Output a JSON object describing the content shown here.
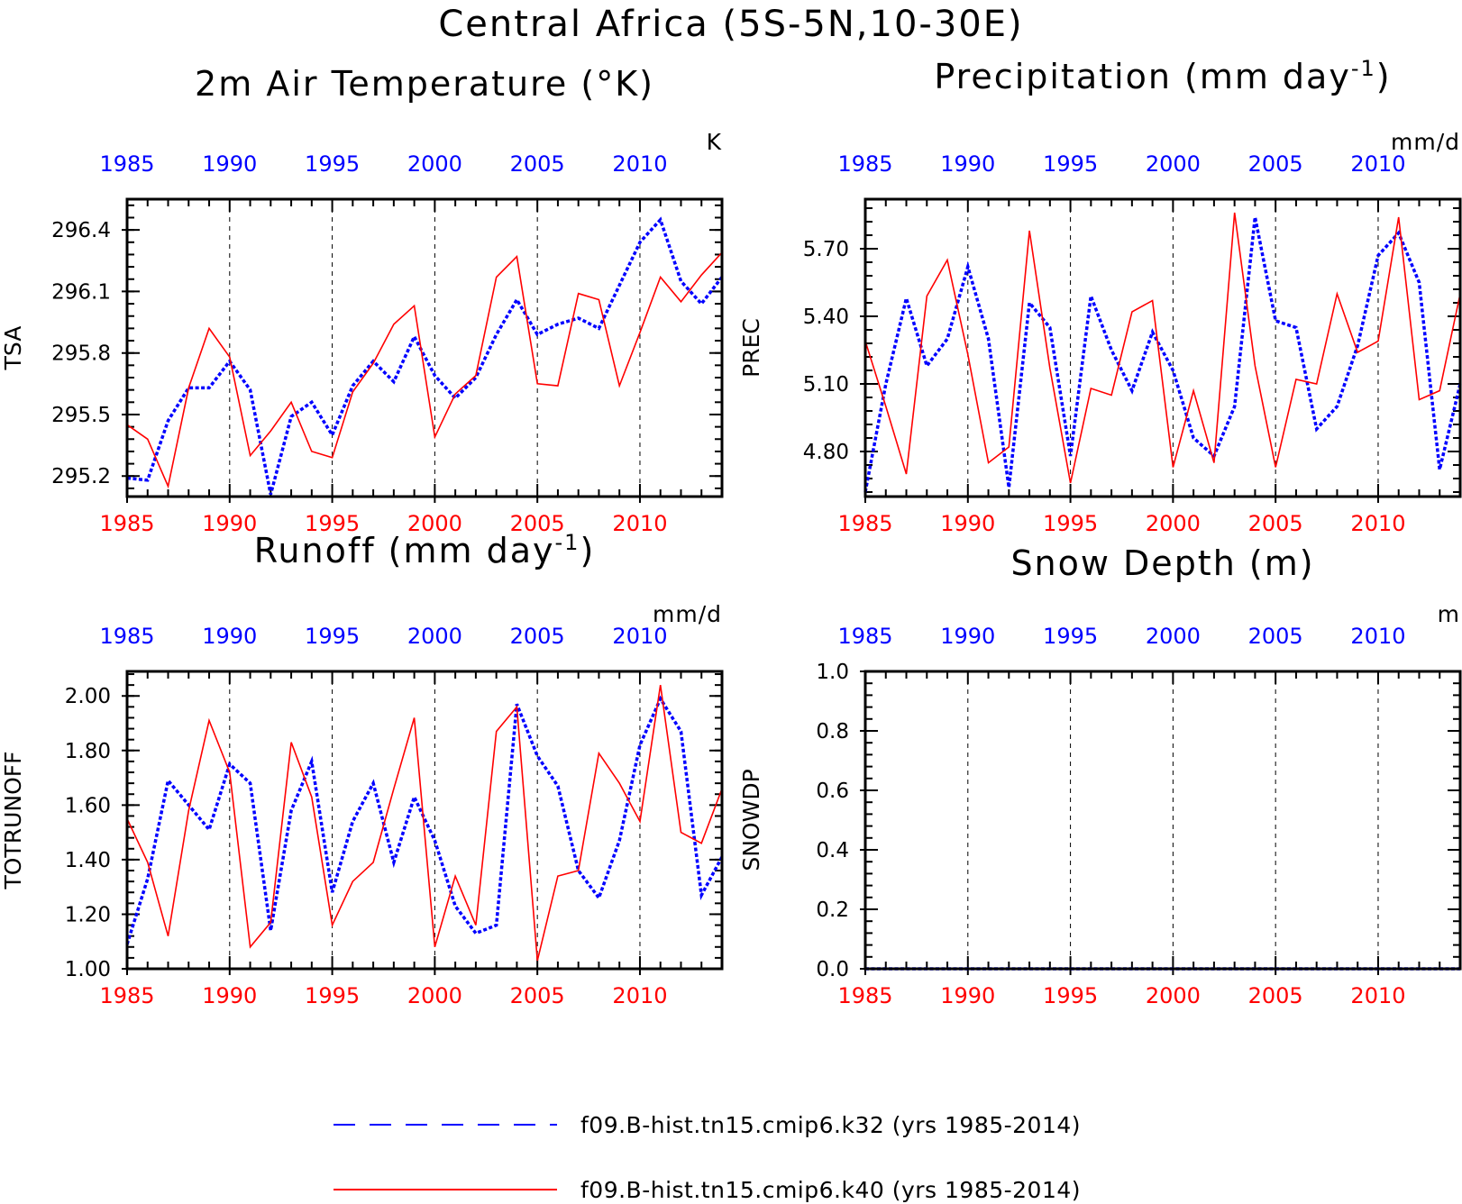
{
  "title": "Central Africa (5S-5N,10-30E)",
  "colors": {
    "blue": "#0000ff",
    "red": "#ff0000",
    "black": "#000000"
  },
  "legend": [
    {
      "label": "f09.B-hist.tn15.cmip6.k32 (yrs 1985-2014)",
      "color": "#0000ff",
      "style": "dashed"
    },
    {
      "label": "f09.B-hist.tn15.cmip6.k40 (yrs 1985-2014)",
      "color": "#ff0000",
      "style": "solid"
    }
  ],
  "chart_data": [
    {
      "type": "line",
      "title": "2m Air Temperature (°K)",
      "ylabel": "TSA",
      "units": "K",
      "xlim": [
        1985,
        2014
      ],
      "ylim": [
        295.1,
        296.55
      ],
      "xticks": [
        1985,
        1990,
        1995,
        2000,
        2005,
        2010
      ],
      "yticks": [
        295.2,
        295.5,
        295.8,
        296.1,
        296.4
      ],
      "ytick_labels": [
        "295.2",
        "295.5",
        "295.8",
        "296.1",
        "296.4"
      ],
      "grid": "dashed vertical at major x ticks",
      "x": [
        1985,
        1986,
        1987,
        1988,
        1989,
        1990,
        1991,
        1992,
        1993,
        1994,
        1995,
        1996,
        1997,
        1998,
        1999,
        2000,
        2001,
        2002,
        2003,
        2004,
        2005,
        2006,
        2007,
        2008,
        2009,
        2010,
        2011,
        2012,
        2013,
        2014
      ],
      "series": [
        {
          "color": "#0000ff",
          "style": "dotted",
          "values": [
            295.19,
            295.18,
            295.47,
            295.63,
            295.63,
            295.76,
            295.62,
            295.11,
            295.49,
            295.56,
            295.4,
            295.64,
            295.76,
            295.66,
            295.88,
            295.69,
            295.58,
            295.68,
            295.89,
            296.06,
            295.89,
            295.94,
            295.97,
            295.92,
            296.13,
            296.34,
            296.45,
            296.15,
            296.04,
            296.17
          ]
        },
        {
          "color": "#ff0000",
          "style": "solid",
          "values": [
            295.45,
            295.38,
            295.15,
            295.63,
            295.92,
            295.78,
            295.3,
            295.42,
            295.56,
            295.32,
            295.29,
            295.61,
            295.75,
            295.94,
            296.03,
            295.39,
            295.6,
            295.69,
            296.17,
            296.27,
            295.65,
            295.64,
            296.09,
            296.06,
            295.64,
            295.9,
            296.17,
            296.05,
            296.18,
            296.29
          ]
        }
      ]
    },
    {
      "type": "line",
      "title": "Precipitation (mm day",
      "title_sup": "-1",
      "title_close": ")",
      "ylabel": "PREC",
      "units": "mm/d",
      "xlim": [
        1985,
        2014
      ],
      "ylim": [
        4.6,
        5.92
      ],
      "xticks": [
        1985,
        1990,
        1995,
        2000,
        2005,
        2010
      ],
      "yticks": [
        4.8,
        5.1,
        5.4,
        5.7
      ],
      "ytick_labels": [
        "4.80",
        "5.10",
        "5.40",
        "5.70"
      ],
      "grid": "dashed vertical at major x ticks",
      "x": [
        1985,
        1986,
        1987,
        1988,
        1989,
        1990,
        1991,
        1992,
        1993,
        1994,
        1995,
        1996,
        1997,
        1998,
        1999,
        2000,
        2001,
        2002,
        2003,
        2004,
        2005,
        2006,
        2007,
        2008,
        2009,
        2010,
        2011,
        2012,
        2013,
        2014
      ],
      "series": [
        {
          "color": "#0000ff",
          "style": "dotted",
          "values": [
            4.62,
            5.1,
            5.48,
            5.18,
            5.3,
            5.62,
            5.3,
            4.64,
            5.46,
            5.35,
            4.78,
            5.49,
            5.25,
            5.07,
            5.33,
            5.16,
            4.86,
            4.78,
            5.0,
            5.84,
            5.38,
            5.35,
            4.9,
            5.0,
            5.27,
            5.67,
            5.77,
            5.55,
            4.72,
            5.1
          ]
        },
        {
          "color": "#ff0000",
          "style": "solid",
          "values": [
            5.29,
            5.0,
            4.7,
            5.49,
            5.65,
            5.23,
            4.75,
            4.82,
            5.78,
            5.17,
            4.66,
            5.08,
            5.05,
            5.42,
            5.47,
            4.73,
            5.07,
            4.75,
            5.86,
            5.18,
            4.73,
            5.12,
            5.1,
            5.5,
            5.24,
            5.29,
            5.84,
            5.03,
            5.07,
            5.5
          ]
        }
      ]
    },
    {
      "type": "line",
      "title": "Runoff (mm day",
      "title_sup": "-1",
      "title_close": ")",
      "ylabel": "TOTRUNOFF",
      "units": "mm/d",
      "xlim": [
        1985,
        2014
      ],
      "ylim": [
        1.0,
        2.09
      ],
      "xticks": [
        1985,
        1990,
        1995,
        2000,
        2005,
        2010
      ],
      "yticks": [
        1.0,
        1.2,
        1.4,
        1.6,
        1.8,
        2.0
      ],
      "ytick_labels": [
        "1.00",
        "1.20",
        "1.40",
        "1.60",
        "1.80",
        "2.00"
      ],
      "grid": "dashed vertical at major x ticks",
      "x": [
        1985,
        1986,
        1987,
        1988,
        1989,
        1990,
        1991,
        1992,
        1993,
        1994,
        1995,
        1996,
        1997,
        1998,
        1999,
        2000,
        2001,
        2002,
        2003,
        2004,
        2005,
        2006,
        2007,
        2008,
        2009,
        2010,
        2011,
        2012,
        2013,
        2014
      ],
      "series": [
        {
          "color": "#0000ff",
          "style": "dotted",
          "values": [
            1.09,
            1.33,
            1.69,
            1.6,
            1.51,
            1.75,
            1.68,
            1.14,
            1.58,
            1.76,
            1.28,
            1.54,
            1.68,
            1.39,
            1.63,
            1.47,
            1.23,
            1.13,
            1.16,
            1.97,
            1.78,
            1.67,
            1.36,
            1.26,
            1.47,
            1.82,
            1.99,
            1.87,
            1.27,
            1.41
          ]
        },
        {
          "color": "#ff0000",
          "style": "solid",
          "values": [
            1.55,
            1.39,
            1.12,
            1.58,
            1.91,
            1.72,
            1.08,
            1.17,
            1.83,
            1.63,
            1.16,
            1.32,
            1.39,
            1.66,
            1.92,
            1.08,
            1.34,
            1.16,
            1.87,
            1.96,
            1.03,
            1.34,
            1.36,
            1.79,
            1.68,
            1.54,
            2.04,
            1.5,
            1.46,
            1.66
          ]
        }
      ]
    },
    {
      "type": "line",
      "title": "Snow Depth (m)",
      "ylabel": "SNOWDP",
      "units": "m",
      "xlim": [
        1985,
        2014
      ],
      "ylim": [
        0.0,
        1.0
      ],
      "xticks": [
        1985,
        1990,
        1995,
        2000,
        2005,
        2010
      ],
      "yticks": [
        0.0,
        0.2,
        0.4,
        0.6,
        0.8,
        1.0
      ],
      "ytick_labels": [
        "0.0",
        "0.2",
        "0.4",
        "0.6",
        "0.8",
        "1.0"
      ],
      "grid": "dashed vertical at major x ticks",
      "x": [
        1985,
        1986,
        1987,
        1988,
        1989,
        1990,
        1991,
        1992,
        1993,
        1994,
        1995,
        1996,
        1997,
        1998,
        1999,
        2000,
        2001,
        2002,
        2003,
        2004,
        2005,
        2006,
        2007,
        2008,
        2009,
        2010,
        2011,
        2012,
        2013,
        2014
      ],
      "series": [
        {
          "color": "#0000ff",
          "style": "dotted",
          "values": [
            0,
            0,
            0,
            0,
            0,
            0,
            0,
            0,
            0,
            0,
            0,
            0,
            0,
            0,
            0,
            0,
            0,
            0,
            0,
            0,
            0,
            0,
            0,
            0,
            0,
            0,
            0,
            0,
            0,
            0
          ]
        },
        {
          "color": "#ff0000",
          "style": "solid",
          "values": [
            0,
            0,
            0,
            0,
            0,
            0,
            0,
            0,
            0,
            0,
            0,
            0,
            0,
            0,
            0,
            0,
            0,
            0,
            0,
            0,
            0,
            0,
            0,
            0,
            0,
            0,
            0,
            0,
            0,
            0
          ]
        }
      ]
    }
  ]
}
